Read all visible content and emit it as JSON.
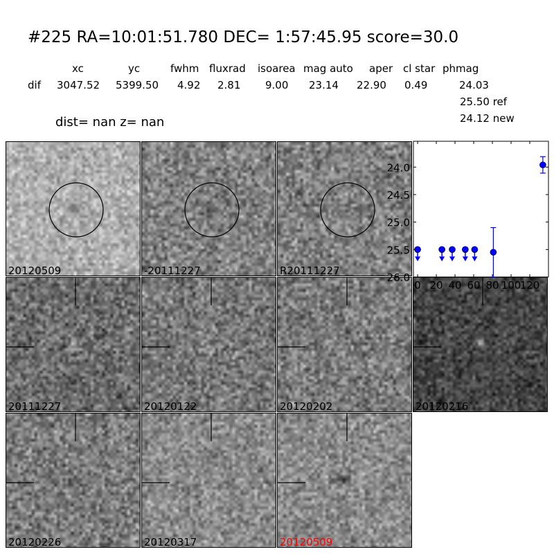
{
  "header": {
    "title": "#225   RA=10:01:51.780 DEC= 1:57:45.95      score=30.0",
    "columns": [
      "xc",
      "yc",
      "fwhm",
      "fluxrad",
      "isoarea",
      "mag auto",
      "aper",
      "cl star",
      "phmag"
    ],
    "row_label": "dif",
    "values": [
      "3047.52",
      "5399.50",
      "4.92",
      "2.81",
      "9.00",
      "23.14",
      "22.90",
      "0.49",
      "24.03"
    ],
    "ref_mag": "25.50 ref",
    "new_mag": "24.12 new",
    "dist_line": "dist=   nan      z=   nan"
  },
  "stamps": [
    {
      "label": "20120509",
      "label_color": "#000000",
      "marker": "circle"
    },
    {
      "label": "-20111227",
      "label_color": "#000000",
      "marker": "circle"
    },
    {
      "label": "R20111227",
      "label_color": "#000000",
      "marker": "circle"
    },
    {
      "label": "20111227",
      "label_color": "#000000",
      "marker": "crosshair"
    },
    {
      "label": "20120122",
      "label_color": "#000000",
      "marker": "crosshair"
    },
    {
      "label": "20120202",
      "label_color": "#000000",
      "marker": "crosshair"
    },
    {
      "label": "20120216",
      "label_color": "#000000",
      "marker": "crosshair"
    },
    {
      "label": "20120226",
      "label_color": "#000000",
      "marker": "crosshair"
    },
    {
      "label": "20120317",
      "label_color": "#000000",
      "marker": "crosshair"
    },
    {
      "label": "20120509",
      "label_color": "#ff0000",
      "marker": "crosshair"
    }
  ],
  "chart_data": {
    "type": "scatter",
    "title": "",
    "xlabel": "",
    "ylabel": "",
    "xlim": [
      -4.5,
      140
    ],
    "ylim": [
      26.0,
      23.53
    ],
    "y_inverted": true,
    "x_ticks": [
      "0",
      "20",
      "40",
      "60",
      "80",
      "100",
      "120"
    ],
    "y_ticks": [
      "24.0",
      "24.5",
      "25.0",
      "25.5",
      "26.0"
    ],
    "color": "#0000ff",
    "points": [
      {
        "x": 0,
        "y": 25.5,
        "upper_limit": true
      },
      {
        "x": 26,
        "y": 25.5,
        "upper_limit": true
      },
      {
        "x": 37,
        "y": 25.5,
        "upper_limit": true
      },
      {
        "x": 51,
        "y": 25.5,
        "upper_limit": true
      },
      {
        "x": 61,
        "y": 25.5,
        "upper_limit": true
      },
      {
        "x": 81,
        "y": 25.55,
        "upper_limit": false,
        "err_low": 25.1,
        "err_high": 26.0
      },
      {
        "x": 134,
        "y": 23.96,
        "upper_limit": false,
        "err_low": 23.81,
        "err_high": 24.11
      }
    ]
  }
}
